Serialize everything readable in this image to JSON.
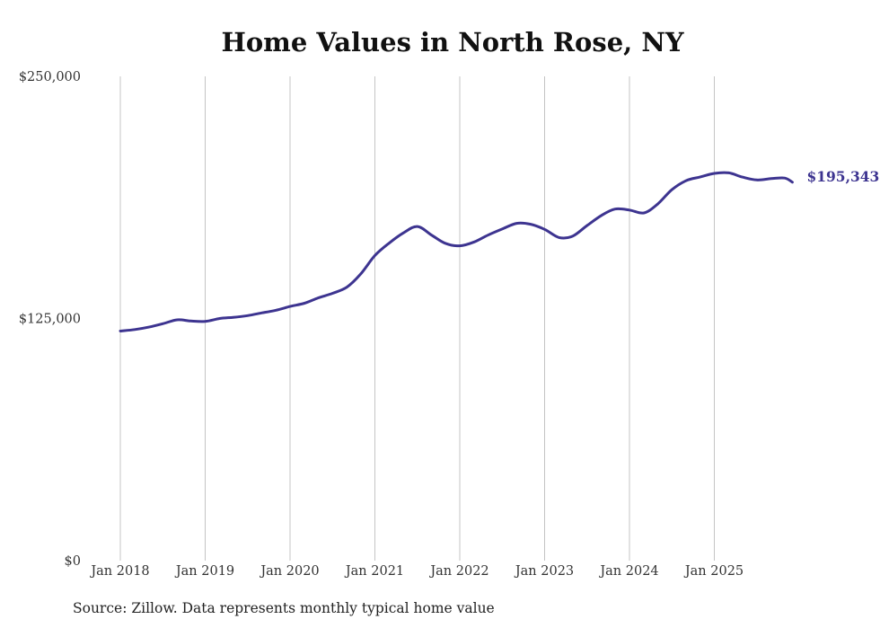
{
  "chart_data": {
    "type": "line",
    "title": "Home Values in North Rose, NY",
    "xlabel": "",
    "ylabel": "",
    "ylim": [
      0,
      250000
    ],
    "y_ticks": [
      {
        "value": 0,
        "label": "$0"
      },
      {
        "value": 125000,
        "label": "$125,000"
      },
      {
        "value": 250000,
        "label": "$250,000"
      }
    ],
    "x_ticks": [
      {
        "value": 2018,
        "label": "Jan 2018"
      },
      {
        "value": 2019,
        "label": "Jan 2019"
      },
      {
        "value": 2020,
        "label": "Jan 2020"
      },
      {
        "value": 2021,
        "label": "Jan 2021"
      },
      {
        "value": 2022,
        "label": "Jan 2022"
      },
      {
        "value": 2023,
        "label": "Jan 2023"
      },
      {
        "value": 2024,
        "label": "Jan 2024"
      },
      {
        "value": 2025,
        "label": "Jan 2025"
      }
    ],
    "xlim": [
      2018,
      2026
    ],
    "grid": "vertical",
    "series": [
      {
        "name": "Typical home value",
        "color": "#3d3490",
        "end_label": "$195,343",
        "points": [
          [
            2018.0,
            118500
          ],
          [
            2018.17,
            119300
          ],
          [
            2018.33,
            120500
          ],
          [
            2018.5,
            122300
          ],
          [
            2018.67,
            124300
          ],
          [
            2018.83,
            123700
          ],
          [
            2019.0,
            123500
          ],
          [
            2019.17,
            125000
          ],
          [
            2019.33,
            125600
          ],
          [
            2019.5,
            126500
          ],
          [
            2019.67,
            127900
          ],
          [
            2019.83,
            129200
          ],
          [
            2020.0,
            131200
          ],
          [
            2020.17,
            132900
          ],
          [
            2020.33,
            135600
          ],
          [
            2020.5,
            138000
          ],
          [
            2020.67,
            141200
          ],
          [
            2020.83,
            147800
          ],
          [
            2021.0,
            157500
          ],
          [
            2021.17,
            164000
          ],
          [
            2021.33,
            169000
          ],
          [
            2021.5,
            172500
          ],
          [
            2021.67,
            168000
          ],
          [
            2021.83,
            163800
          ],
          [
            2022.0,
            162500
          ],
          [
            2022.17,
            164500
          ],
          [
            2022.33,
            168000
          ],
          [
            2022.5,
            171200
          ],
          [
            2022.67,
            174100
          ],
          [
            2022.83,
            173700
          ],
          [
            2023.0,
            171000
          ],
          [
            2023.17,
            166800
          ],
          [
            2023.33,
            167500
          ],
          [
            2023.5,
            173000
          ],
          [
            2023.67,
            178200
          ],
          [
            2023.83,
            181500
          ],
          [
            2024.0,
            181000
          ],
          [
            2024.17,
            179500
          ],
          [
            2024.33,
            184000
          ],
          [
            2024.5,
            191500
          ],
          [
            2024.67,
            196200
          ],
          [
            2024.83,
            198000
          ],
          [
            2025.0,
            199900
          ],
          [
            2025.17,
            200200
          ],
          [
            2025.33,
            198000
          ],
          [
            2025.5,
            196500
          ],
          [
            2025.67,
            197200
          ],
          [
            2025.83,
            197500
          ],
          [
            2025.92,
            195343
          ]
        ]
      }
    ]
  },
  "footer": {
    "source_note": "Source: Zillow. Data represents monthly typical home value"
  }
}
